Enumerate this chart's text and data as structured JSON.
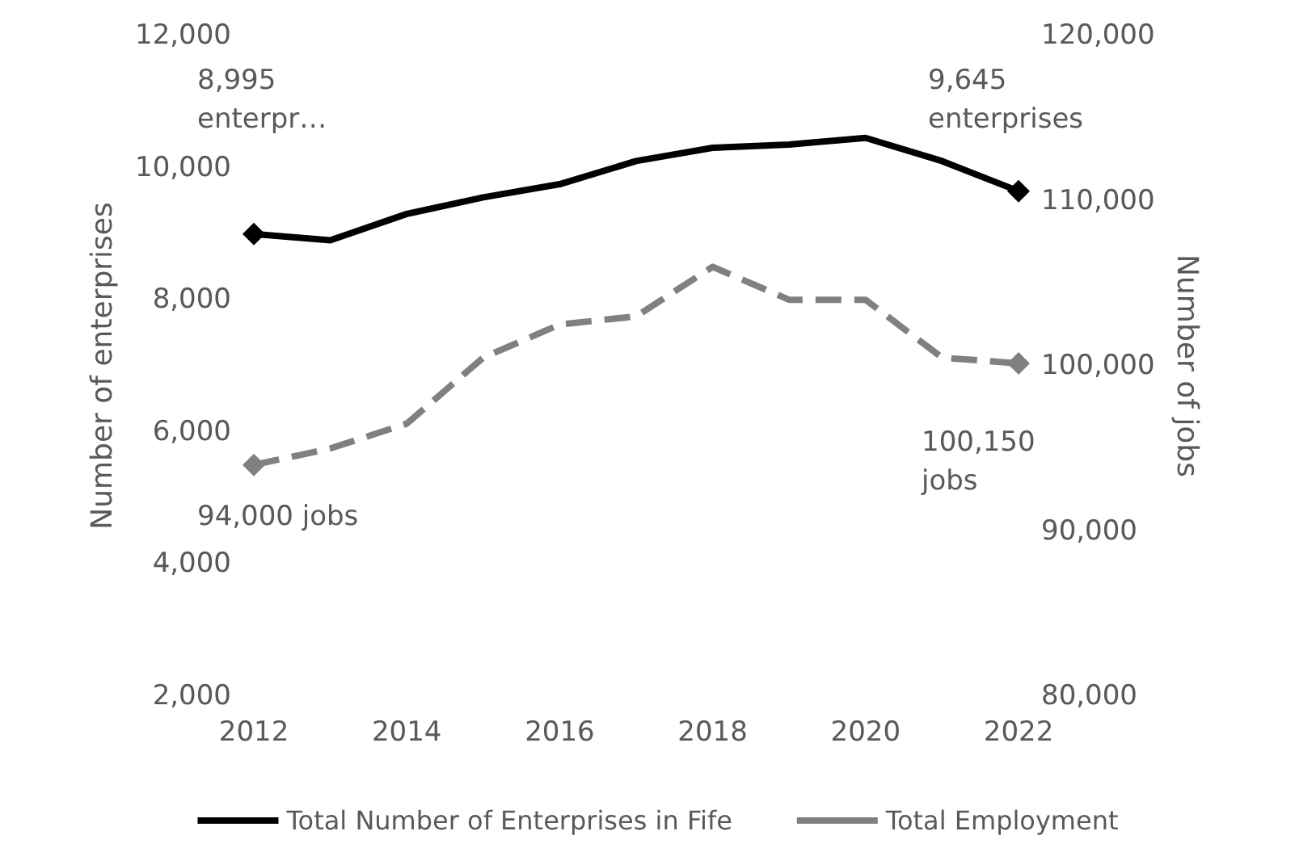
{
  "chart_data": {
    "type": "line",
    "x": [
      2012,
      2013,
      2014,
      2015,
      2016,
      2017,
      2018,
      2019,
      2020,
      2021,
      2022
    ],
    "series": [
      {
        "name": "Total Number of Enterprises in Fife",
        "color": "#000000",
        "line_style": "solid",
        "values": [
          8995,
          8900,
          9300,
          9550,
          9750,
          10100,
          10300,
          10350,
          10450,
          10100,
          9645
        ]
      },
      {
        "name": "Total Employment",
        "color": "#808080",
        "line_style": "dashed",
        "axis": "y2",
        "values": [
          94000,
          95000,
          96500,
          100500,
          102500,
          103000,
          106000,
          104000,
          104000,
          100500,
          100150
        ]
      }
    ],
    "xlim": [
      2012,
      2022
    ],
    "xticks": [
      2012,
      2014,
      2016,
      2018,
      2020,
      2022
    ],
    "ylim": [
      2000,
      12000
    ],
    "yticks": [
      {
        "value": 2000,
        "label": "2,000"
      },
      {
        "value": 4000,
        "label": "4,000"
      },
      {
        "value": 6000,
        "label": "6,000"
      },
      {
        "value": 8000,
        "label": "8,000"
      },
      {
        "value": 10000,
        "label": "10,000"
      },
      {
        "value": 12000,
        "label": "12,000"
      }
    ],
    "y2lim": [
      80000,
      120000
    ],
    "y2ticks": [
      {
        "value": 80000,
        "label": "80,000"
      },
      {
        "value": 90000,
        "label": "90,000"
      },
      {
        "value": 100000,
        "label": "100,000"
      },
      {
        "value": 110000,
        "label": "110,000"
      },
      {
        "value": 120000,
        "label": "120,000"
      }
    ],
    "ylabel": "Number of enterprises",
    "y2label": "Number of jobs",
    "annotations": [
      "8,995\nenterpr…",
      "9,645\nenterprises",
      "94,000 jobs",
      "100,150\njobs"
    ],
    "grid": false,
    "legend": "bottom"
  }
}
